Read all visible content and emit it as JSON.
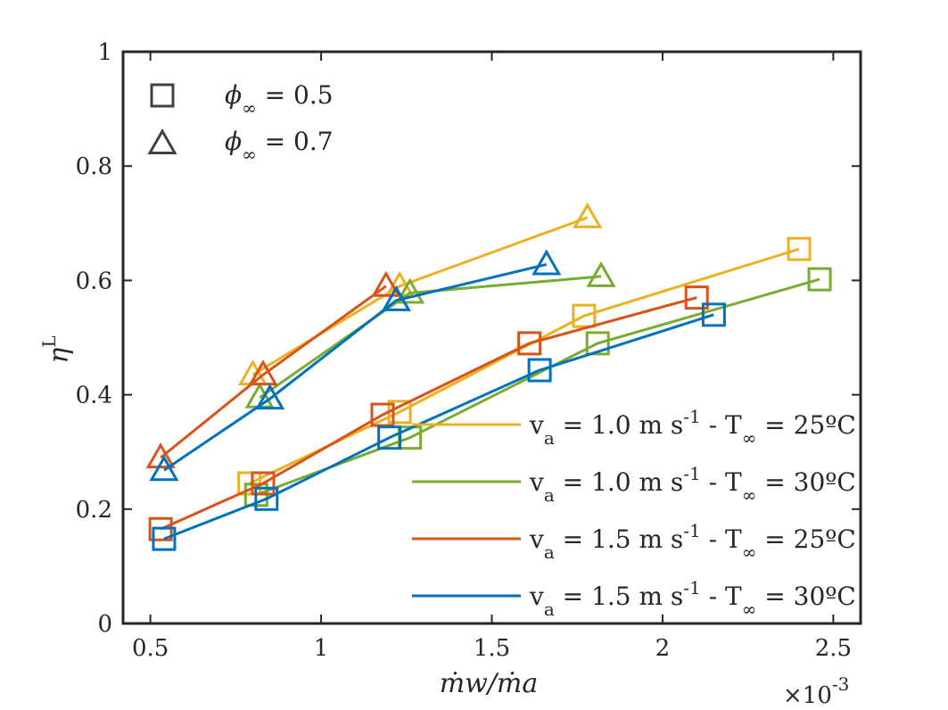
{
  "chart_data": {
    "type": "line",
    "xlabel": "ṁw/ṁa",
    "ylabel": "η",
    "ylabel_sup": "L",
    "x_multiplier": "×10",
    "x_multiplier_exp": "-3",
    "xlim": [
      0.42,
      2.58
    ],
    "ylim": [
      0,
      1
    ],
    "xticks": [
      0.5,
      1,
      1.5,
      2,
      2.5
    ],
    "xtick_labels": [
      "0.5",
      "1",
      "1.5",
      "2",
      "2.5"
    ],
    "yticks": [
      0,
      0.2,
      0.4,
      0.6,
      0.8,
      1
    ],
    "ytick_labels": [
      "0",
      "0.2",
      "0.4",
      "0.6",
      "0.8",
      "1"
    ],
    "marker_legend": [
      {
        "marker": "square",
        "symbol": "ϕ",
        "sub": "∞",
        "text": " = 0.5"
      },
      {
        "marker": "triangle",
        "symbol": "ϕ",
        "sub": "∞",
        "text": " = 0.7"
      }
    ],
    "series": [
      {
        "legend": {
          "a": "v",
          "a_sub": "a",
          "b": " = 1.0 m s",
          "b_sup": "-1",
          "c": " - T",
          "c_sub": "∞",
          "d": " = 25ºC"
        },
        "color": "#EDB120",
        "phi05": {
          "x": [
            0.79,
            1.23,
            1.77,
            2.4
          ],
          "y": [
            0.245,
            0.37,
            0.538,
            0.655
          ]
        },
        "phi07": {
          "x": [
            0.8,
            1.23,
            1.78
          ],
          "y": [
            0.435,
            0.59,
            0.71
          ]
        }
      },
      {
        "legend": {
          "a": "v",
          "a_sub": "a",
          "b": " = 1.0 m s",
          "b_sup": "-1",
          "c": " - T",
          "c_sub": "∞",
          "d": " = 30ºC"
        },
        "color": "#77AC30",
        "phi05": {
          "x": [
            0.81,
            1.26,
            1.81,
            2.46
          ],
          "y": [
            0.225,
            0.325,
            0.49,
            0.602
          ]
        },
        "phi07": {
          "x": [
            0.82,
            1.26,
            1.82
          ],
          "y": [
            0.395,
            0.578,
            0.607
          ]
        }
      },
      {
        "legend": {
          "a": "v",
          "a_sub": "a",
          "b": " = 1.5 m s",
          "b_sup": "-1",
          "c": " - T",
          "c_sub": "∞",
          "d": " = 25ºC"
        },
        "color": "#D95319",
        "phi05": {
          "x": [
            0.53,
            0.83,
            1.18,
            1.61,
            2.1
          ],
          "y": [
            0.165,
            0.245,
            0.365,
            0.49,
            0.57
          ]
        },
        "phi07": {
          "x": [
            0.53,
            0.83,
            1.19
          ],
          "y": [
            0.29,
            0.435,
            0.59
          ]
        }
      },
      {
        "legend": {
          "a": "v",
          "a_sub": "a",
          "b": " = 1.5 m s",
          "b_sup": "-1",
          "c": " - T",
          "c_sub": "∞",
          "d": " = 30ºC"
        },
        "color": "#0072BD",
        "phi05": {
          "x": [
            0.54,
            0.84,
            1.2,
            1.64,
            2.15
          ],
          "y": [
            0.148,
            0.218,
            0.325,
            0.443,
            0.54
          ]
        },
        "phi07": {
          "x": [
            0.54,
            0.85,
            1.22,
            1.66
          ],
          "y": [
            0.268,
            0.393,
            0.565,
            0.628
          ]
        }
      }
    ]
  }
}
